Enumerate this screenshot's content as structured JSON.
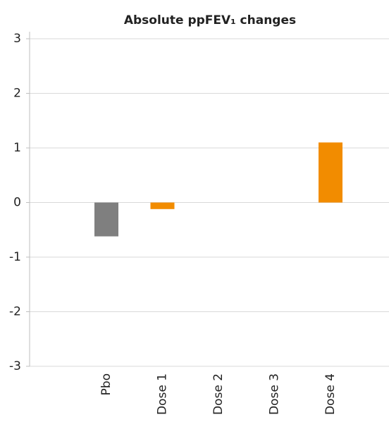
{
  "chart_data": {
    "type": "bar",
    "title": "Absolute ppFEV₁ changes",
    "categories": [
      "Pbo",
      "Dose 1",
      "Dose 2",
      "Dose 3",
      "Dose 4"
    ],
    "values": [
      -0.62,
      -0.12,
      0,
      0,
      1.1
    ],
    "colors": [
      "#7f7f7f",
      "#f28c00",
      "#f28c00",
      "#f28c00",
      "#f28c00"
    ],
    "ylim": [
      -3,
      3
    ],
    "yticks": [
      -3,
      -2,
      -1,
      0,
      1,
      2,
      3
    ],
    "grid": true
  }
}
